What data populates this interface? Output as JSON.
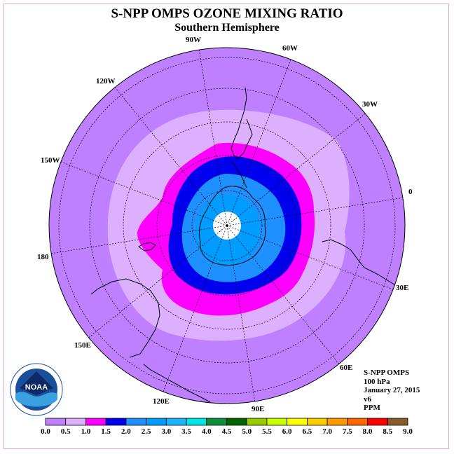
{
  "header": {
    "title": "S-NPP OMPS OZONE MIXING RATIO",
    "subtitle": "Southern Hemisphere"
  },
  "map": {
    "projection": "south polar stereographic",
    "longitude_labels": [
      "0",
      "30E",
      "60E",
      "90E",
      "120E",
      "150E",
      "180",
      "150W",
      "120W",
      "90W",
      "60W",
      "30W"
    ],
    "colors": {
      "ocean_fill": "#bf80ff",
      "level_0_5": "#ddb0ff",
      "level_1_0": "#ff00ff",
      "level_1_5": "#0000ee",
      "level_2_0": "#1e90ff",
      "level_2_5": "#009cff",
      "pole_missing": "#ffffff"
    }
  },
  "info": {
    "instrument": "S-NPP OMPS",
    "level": "100 hPa",
    "date": "January 27, 2015",
    "version": "v6",
    "units": "PPM"
  },
  "colorbar": {
    "labels": [
      "0.0",
      "0.5",
      "1.0",
      "1.5",
      "2.0",
      "2.5",
      "3.0",
      "3.5",
      "4.0",
      "4.5",
      "5.0",
      "5.5",
      "6.0",
      "6.5",
      "7.0",
      "7.5",
      "8.0",
      "8.5",
      "9.0"
    ],
    "colors": [
      "#bf80ff",
      "#ddb0ff",
      "#ff00ff",
      "#0000ee",
      "#1e90ff",
      "#009cff",
      "#1ab4ff",
      "#00e6e6",
      "#0d8f3c",
      "#006400",
      "#99cc00",
      "#ccff00",
      "#ffff00",
      "#ffcc00",
      "#ff9900",
      "#ff6600",
      "#ff0000",
      "#8b5a2b"
    ]
  },
  "logo": {
    "text": "NOAA",
    "icon": "noaa-logo-icon"
  }
}
